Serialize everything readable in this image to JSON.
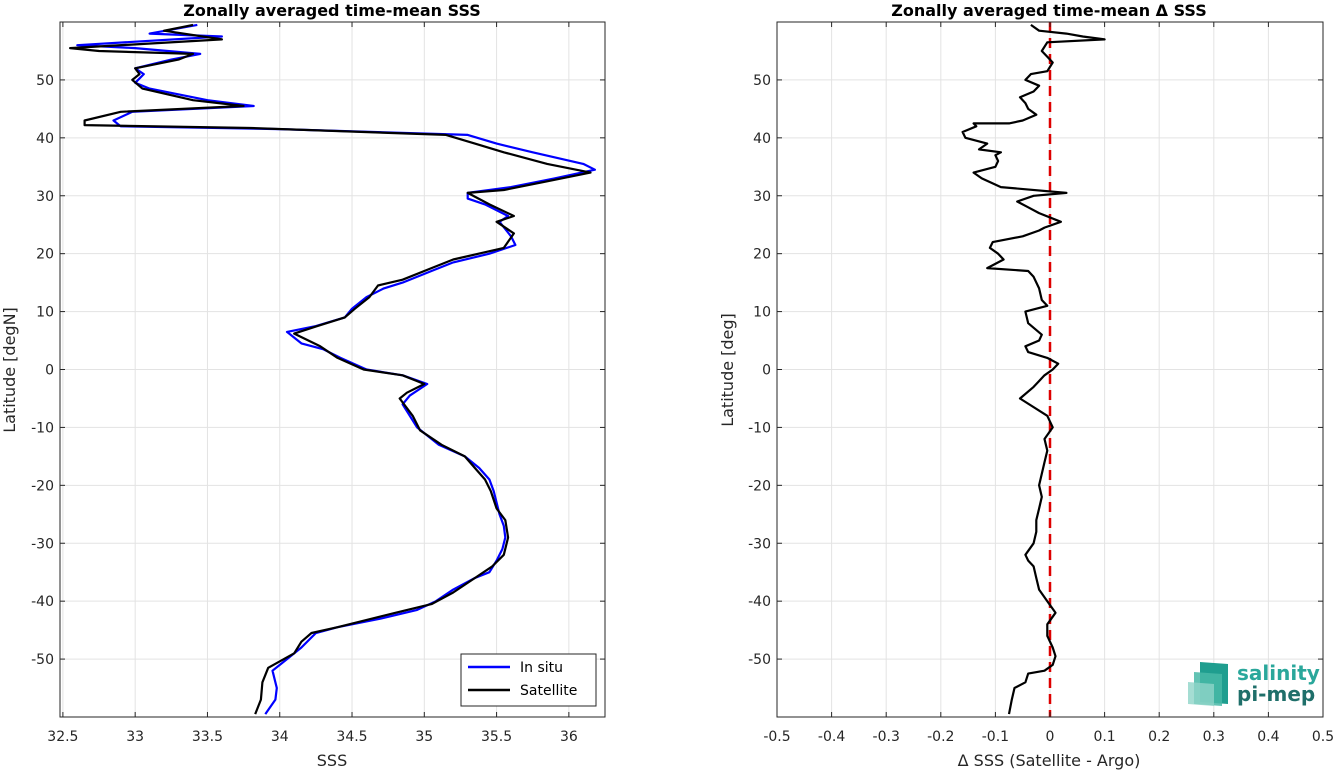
{
  "chart_data": [
    {
      "type": "line",
      "title": "Zonally averaged time-mean SSS",
      "xlabel": "SSS",
      "ylabel": "Latitude [degN]",
      "xlim": [
        32.48,
        36.25
      ],
      "ylim": [
        -60,
        60
      ],
      "xticks": [
        "32.5",
        "33",
        "33.5",
        "34",
        "34.5",
        "35",
        "35.5",
        "36"
      ],
      "yticks": [
        "-50",
        "-40",
        "-30",
        "-20",
        "-10",
        "0",
        "10",
        "20",
        "30",
        "40",
        "50"
      ],
      "grid": true,
      "legend": {
        "placement": "bottom-right",
        "entries": [
          "In situ",
          "Satellite"
        ]
      },
      "series": [
        {
          "name": "In situ",
          "color": "#0000ff",
          "points": [
            [
              33.9,
              -59.5
            ],
            [
              33.97,
              -57
            ],
            [
              33.98,
              -55
            ],
            [
              33.95,
              -52
            ],
            [
              34.05,
              -50
            ],
            [
              34.15,
              -48
            ],
            [
              34.25,
              -45.5
            ],
            [
              34.4,
              -44.5
            ],
            [
              34.7,
              -43
            ],
            [
              34.95,
              -41.5
            ],
            [
              35.08,
              -40
            ],
            [
              35.2,
              -38
            ],
            [
              35.35,
              -36
            ],
            [
              35.45,
              -35
            ],
            [
              35.5,
              -33
            ],
            [
              35.54,
              -31
            ],
            [
              35.56,
              -29
            ],
            [
              35.55,
              -27
            ],
            [
              35.52,
              -25
            ],
            [
              35.5,
              -23
            ],
            [
              35.48,
              -21
            ],
            [
              35.45,
              -19
            ],
            [
              35.38,
              -17
            ],
            [
              35.28,
              -15
            ],
            [
              35.1,
              -13
            ],
            [
              34.95,
              -10
            ],
            [
              34.9,
              -8
            ],
            [
              34.85,
              -6
            ],
            [
              34.9,
              -4.5
            ],
            [
              35.02,
              -2.5
            ],
            [
              34.85,
              -1
            ],
            [
              34.6,
              0
            ],
            [
              34.42,
              2
            ],
            [
              34.3,
              3.5
            ],
            [
              34.15,
              4.5
            ],
            [
              34.05,
              6.5
            ],
            [
              34.25,
              7.5
            ],
            [
              34.45,
              9
            ],
            [
              34.5,
              10.5
            ],
            [
              34.6,
              12.5
            ],
            [
              34.72,
              14
            ],
            [
              34.85,
              15
            ],
            [
              35.05,
              17
            ],
            [
              35.2,
              18.5
            ],
            [
              35.45,
              20
            ],
            [
              35.63,
              21.5
            ],
            [
              35.6,
              23
            ],
            [
              35.52,
              25.5
            ],
            [
              35.58,
              26.5
            ],
            [
              35.42,
              28.5
            ],
            [
              35.3,
              29.5
            ],
            [
              35.3,
              30.5
            ],
            [
              35.6,
              31.5
            ],
            [
              35.9,
              33
            ],
            [
              36.18,
              34.5
            ],
            [
              36.1,
              35.5
            ],
            [
              35.75,
              37.5
            ],
            [
              35.5,
              39
            ],
            [
              35.3,
              40.5
            ],
            [
              34.0,
              41.5
            ],
            [
              32.9,
              42
            ],
            [
              32.85,
              43
            ],
            [
              32.98,
              44.5
            ],
            [
              33.82,
              45.5
            ],
            [
              33.5,
              46.5
            ],
            [
              33.1,
              48.5
            ],
            [
              33.0,
              49.5
            ],
            [
              33.06,
              51
            ],
            [
              33.0,
              52
            ],
            [
              33.25,
              53.5
            ],
            [
              33.45,
              54.5
            ],
            [
              33.0,
              55.5
            ],
            [
              32.6,
              56
            ],
            [
              33.6,
              57.5
            ],
            [
              33.1,
              58
            ],
            [
              33.43,
              59.5
            ]
          ]
        },
        {
          "name": "Satellite",
          "color": "#000000",
          "points": [
            [
              33.83,
              -59.5
            ],
            [
              33.87,
              -57
            ],
            [
              33.88,
              -54
            ],
            [
              33.92,
              -51.5
            ],
            [
              34.1,
              -49
            ],
            [
              34.15,
              -47
            ],
            [
              34.22,
              -45.5
            ],
            [
              34.4,
              -44.5
            ],
            [
              34.8,
              -42
            ],
            [
              35.05,
              -40.5
            ],
            [
              35.2,
              -38.5
            ],
            [
              35.35,
              -36
            ],
            [
              35.47,
              -34
            ],
            [
              35.55,
              -32
            ],
            [
              35.58,
              -29
            ],
            [
              35.56,
              -26
            ],
            [
              35.5,
              -24
            ],
            [
              35.46,
              -21
            ],
            [
              35.42,
              -19
            ],
            [
              35.35,
              -17
            ],
            [
              35.28,
              -15
            ],
            [
              35.12,
              -13
            ],
            [
              34.97,
              -10.5
            ],
            [
              34.92,
              -8
            ],
            [
              34.83,
              -5
            ],
            [
              34.88,
              -4
            ],
            [
              35.0,
              -2.5
            ],
            [
              34.85,
              -1
            ],
            [
              34.58,
              0
            ],
            [
              34.4,
              2
            ],
            [
              34.28,
              4
            ],
            [
              34.1,
              6.2
            ],
            [
              34.26,
              7.5
            ],
            [
              34.45,
              9
            ],
            [
              34.52,
              10.5
            ],
            [
              34.62,
              12.5
            ],
            [
              34.68,
              14.5
            ],
            [
              34.85,
              15.5
            ],
            [
              35.05,
              17.5
            ],
            [
              35.2,
              19
            ],
            [
              35.55,
              21
            ],
            [
              35.62,
              23.5
            ],
            [
              35.5,
              25.5
            ],
            [
              35.62,
              26.5
            ],
            [
              35.45,
              28.5
            ],
            [
              35.3,
              30.5
            ],
            [
              35.55,
              31
            ],
            [
              35.85,
              32.5
            ],
            [
              36.15,
              34
            ],
            [
              35.85,
              35.5
            ],
            [
              35.55,
              37.5
            ],
            [
              35.35,
              39
            ],
            [
              35.15,
              40.5
            ],
            [
              33.8,
              41.7
            ],
            [
              32.65,
              42.2
            ],
            [
              32.65,
              43
            ],
            [
              32.9,
              44.5
            ],
            [
              33.75,
              45.5
            ],
            [
              33.4,
              46.5
            ],
            [
              33.05,
              48.5
            ],
            [
              32.98,
              50
            ],
            [
              33.03,
              51
            ],
            [
              33.0,
              52
            ],
            [
              33.3,
              53.5
            ],
            [
              33.4,
              54.5
            ],
            [
              32.75,
              55
            ],
            [
              32.55,
              55.5
            ],
            [
              33.6,
              57
            ],
            [
              33.2,
              58.5
            ],
            [
              33.4,
              59.5
            ]
          ]
        }
      ]
    },
    {
      "type": "line",
      "title": "Zonally averaged time-mean Δ SSS",
      "xlabel": "Δ SSS (Satellite - Argo)",
      "ylabel": "Latitude [deg]",
      "xlim": [
        -0.5,
        0.5
      ],
      "ylim": [
        -60,
        60
      ],
      "xticks": [
        "-0.5",
        "-0.4",
        "-0.3",
        "-0.2",
        "-0.1",
        "0",
        "0.1",
        "0.2",
        "0.3",
        "0.4",
        "0.5"
      ],
      "yticks": [
        "-50",
        "-40",
        "-30",
        "-20",
        "-10",
        "0",
        "10",
        "20",
        "30",
        "40",
        "50"
      ],
      "grid": true,
      "reference_line": {
        "x": 0,
        "color": "#dd0000",
        "style": "dashed"
      },
      "series": [
        {
          "color": "#000000",
          "points": [
            [
              -0.075,
              -59.5
            ],
            [
              -0.07,
              -57
            ],
            [
              -0.065,
              -55
            ],
            [
              -0.045,
              -54
            ],
            [
              -0.04,
              -52.5
            ],
            [
              -0.01,
              -52
            ],
            [
              0.005,
              -51
            ],
            [
              0.01,
              -49.5
            ],
            [
              0.005,
              -48
            ],
            [
              -0.005,
              -46
            ],
            [
              -0.005,
              -44
            ],
            [
              0.01,
              -42
            ],
            [
              -0.005,
              -40
            ],
            [
              -0.02,
              -38
            ],
            [
              -0.025,
              -36
            ],
            [
              -0.03,
              -34
            ],
            [
              -0.04,
              -33
            ],
            [
              -0.045,
              -32
            ],
            [
              -0.03,
              -30
            ],
            [
              -0.025,
              -28
            ],
            [
              -0.025,
              -26
            ],
            [
              -0.02,
              -24
            ],
            [
              -0.015,
              -22
            ],
            [
              -0.02,
              -20
            ],
            [
              -0.015,
              -18
            ],
            [
              -0.01,
              -16
            ],
            [
              -0.005,
              -14
            ],
            [
              -0.01,
              -12
            ],
            [
              0.005,
              -10
            ],
            [
              -0.005,
              -8
            ],
            [
              -0.055,
              -5
            ],
            [
              -0.03,
              -3
            ],
            [
              -0.01,
              -1
            ],
            [
              0.005,
              0
            ],
            [
              0.015,
              1
            ],
            [
              -0.005,
              2
            ],
            [
              -0.04,
              3
            ],
            [
              -0.045,
              4
            ],
            [
              -0.02,
              5
            ],
            [
              -0.015,
              6
            ],
            [
              -0.04,
              8
            ],
            [
              -0.045,
              10
            ],
            [
              -0.005,
              11
            ],
            [
              -0.015,
              12
            ],
            [
              -0.02,
              14
            ],
            [
              -0.03,
              16
            ],
            [
              -0.04,
              17
            ],
            [
              -0.115,
              17.5
            ],
            [
              -0.085,
              19
            ],
            [
              -0.095,
              20
            ],
            [
              -0.11,
              21
            ],
            [
              -0.105,
              22
            ],
            [
              -0.05,
              23
            ],
            [
              -0.02,
              24
            ],
            [
              -0.01,
              24.5
            ],
            [
              0.02,
              25.5
            ],
            [
              -0.02,
              27
            ],
            [
              -0.04,
              28
            ],
            [
              -0.06,
              29
            ],
            [
              -0.03,
              30
            ],
            [
              0.03,
              30.5
            ],
            [
              -0.09,
              31.5
            ],
            [
              -0.125,
              33
            ],
            [
              -0.14,
              34
            ],
            [
              -0.1,
              35
            ],
            [
              -0.095,
              36
            ],
            [
              -0.1,
              37
            ],
            [
              -0.09,
              37.5
            ],
            [
              -0.13,
              38
            ],
            [
              -0.115,
              39
            ],
            [
              -0.155,
              40
            ],
            [
              -0.16,
              41
            ],
            [
              -0.135,
              42
            ],
            [
              -0.14,
              42.5
            ],
            [
              -0.075,
              42.5
            ],
            [
              -0.05,
              43
            ],
            [
              -0.025,
              44
            ],
            [
              -0.04,
              45
            ],
            [
              -0.045,
              46
            ],
            [
              -0.055,
              47
            ],
            [
              -0.03,
              48
            ],
            [
              -0.02,
              49
            ],
            [
              -0.045,
              50
            ],
            [
              -0.035,
              51
            ],
            [
              -0.005,
              51.5
            ],
            [
              0.005,
              53
            ],
            [
              -0.005,
              54
            ],
            [
              -0.015,
              55
            ],
            [
              -0.005,
              56.5
            ],
            [
              0.1,
              57
            ],
            [
              0.06,
              57.5
            ],
            [
              0.03,
              58
            ],
            [
              -0.02,
              58.5
            ],
            [
              -0.035,
              59.5
            ]
          ]
        }
      ]
    }
  ],
  "legend": {
    "in_situ_label": "In situ",
    "satellite_label": "Satellite",
    "in_situ_color": "#0000ff",
    "satellite_color": "#000000"
  },
  "logo": {
    "line1": "salinity",
    "line2": "pi-mep"
  }
}
